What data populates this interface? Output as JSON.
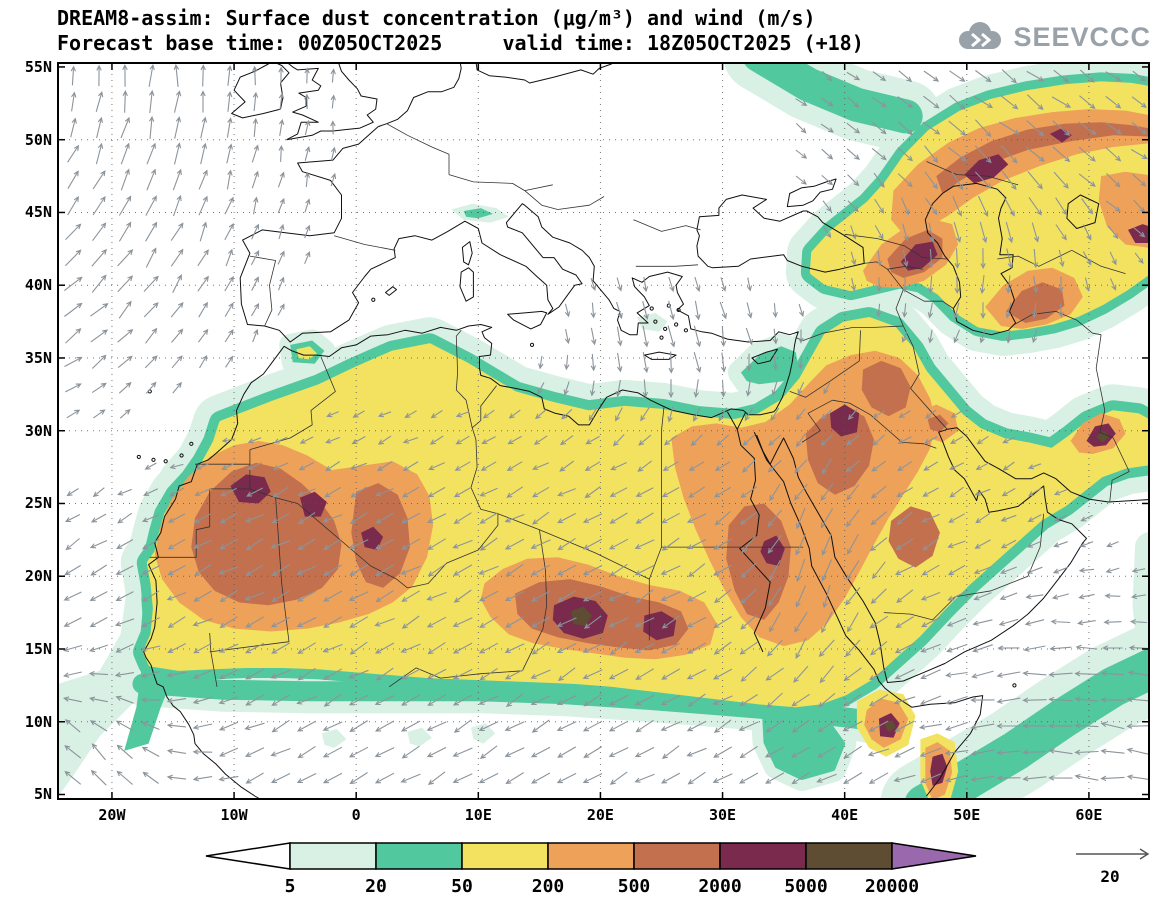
{
  "header": {
    "title_line1": "DREAM8-assim: Surface dust concentration (μg/m³) and wind (m/s)",
    "title_line2": "Forecast base time: 00Z05OCT2025     valid time: 18Z05OCT2025 (+18)",
    "logo_text": "SEEVCCC"
  },
  "axes": {
    "lat_ticks": [
      {
        "label": "55N",
        "deg": 55
      },
      {
        "label": "50N",
        "deg": 50
      },
      {
        "label": "45N",
        "deg": 45
      },
      {
        "label": "40N",
        "deg": 40
      },
      {
        "label": "35N",
        "deg": 35
      },
      {
        "label": "30N",
        "deg": 30
      },
      {
        "label": "25N",
        "deg": 25
      },
      {
        "label": "20N",
        "deg": 20
      },
      {
        "label": "15N",
        "deg": 15
      },
      {
        "label": "10N",
        "deg": 10
      },
      {
        "label": "5N",
        "deg": 5
      }
    ],
    "lon_ticks": [
      {
        "label": "20W",
        "deg": -20
      },
      {
        "label": "10W",
        "deg": -10
      },
      {
        "label": "0",
        "deg": 0
      },
      {
        "label": "10E",
        "deg": 10
      },
      {
        "label": "20E",
        "deg": 20
      },
      {
        "label": "30E",
        "deg": 30
      },
      {
        "label": "40E",
        "deg": 40
      },
      {
        "label": "50E",
        "deg": 50
      },
      {
        "label": "60E",
        "deg": 60
      }
    ]
  },
  "legend": {
    "levels": [
      "5",
      "20",
      "50",
      "200",
      "500",
      "2000",
      "5000",
      "20000"
    ],
    "segment_colors": [
      "#d8f1e4",
      "#52c89e",
      "#f2e260",
      "#eea159",
      "#c2704e",
      "#7a2b4d",
      "#5e4d33"
    ],
    "under_color": "#ffffff",
    "over_color": "#9a68ad"
  },
  "wind_reference": {
    "label": "20"
  },
  "chart_data": {
    "type": "heatmap",
    "subtype": "filled-contour geographic map with wind vector overlay",
    "title": "DREAM8-assim: Surface dust concentration (μg/m³) and wind (m/s)",
    "forecast_base_time": "00Z05OCT2025",
    "valid_time": "18Z05OCT2025",
    "lead_hours": "+18",
    "units": "μg/m³",
    "wind_units": "m/s",
    "wind_reference_ms": 20,
    "x_axis": {
      "label": "longitude",
      "ticks": [
        "20W",
        "10W",
        "0",
        "10E",
        "20E",
        "30E",
        "40E",
        "50E",
        "60E"
      ],
      "range": [
        "25W",
        "65E"
      ]
    },
    "y_axis": {
      "label": "latitude",
      "ticks": [
        "5N",
        "10N",
        "15N",
        "20N",
        "25N",
        "30N",
        "35N",
        "40N",
        "45N",
        "50N",
        "55N"
      ],
      "range": [
        "5N",
        "55N"
      ]
    },
    "contour_levels": [
      5,
      20,
      50,
      200,
      500,
      2000,
      5000,
      20000
    ],
    "palette": [
      "#ffffff",
      "#d8f1e4",
      "#52c89e",
      "#f2e260",
      "#eea159",
      "#c2704e",
      "#7a2b4d",
      "#5e4d33",
      "#9a68ad"
    ],
    "regions": [
      {
        "area": "Western Sahara belt (Mauritania / Mali / S Algeria)",
        "concentration": "500–2000 μg/m³ with cores 2000–5000"
      },
      {
        "area": "Chad–Sudan (Bodélé) belt",
        "concentration": "500–2000 μg/m³ with cores 2000–5000"
      },
      {
        "area": "Egypt / Red Sea / NW Arabia / Iraq",
        "concentration": "200–2000 μg/m³"
      },
      {
        "area": "Caucasus – Caspian – Kazakhstan diagonal band",
        "concentration": "200–2000 μg/m³ with local cores >2000"
      },
      {
        "area": "SE Iran",
        "concentration": "core 2000–5000 μg/m³"
      },
      {
        "area": "Djibouti / Horn of Africa spot",
        "concentration": "core 2000–5000 μg/m³"
      },
      {
        "area": "Sahel fringe, NW-African Atlantic belt, Mediterranean coast fringe, NE band toward Kazakhstan, NW Indian Ocean band",
        "concentration": "5–50 μg/m³"
      },
      {
        "area": "Europe, Black Sea, central Iran",
        "concentration": "< 5 μg/m³"
      }
    ]
  }
}
